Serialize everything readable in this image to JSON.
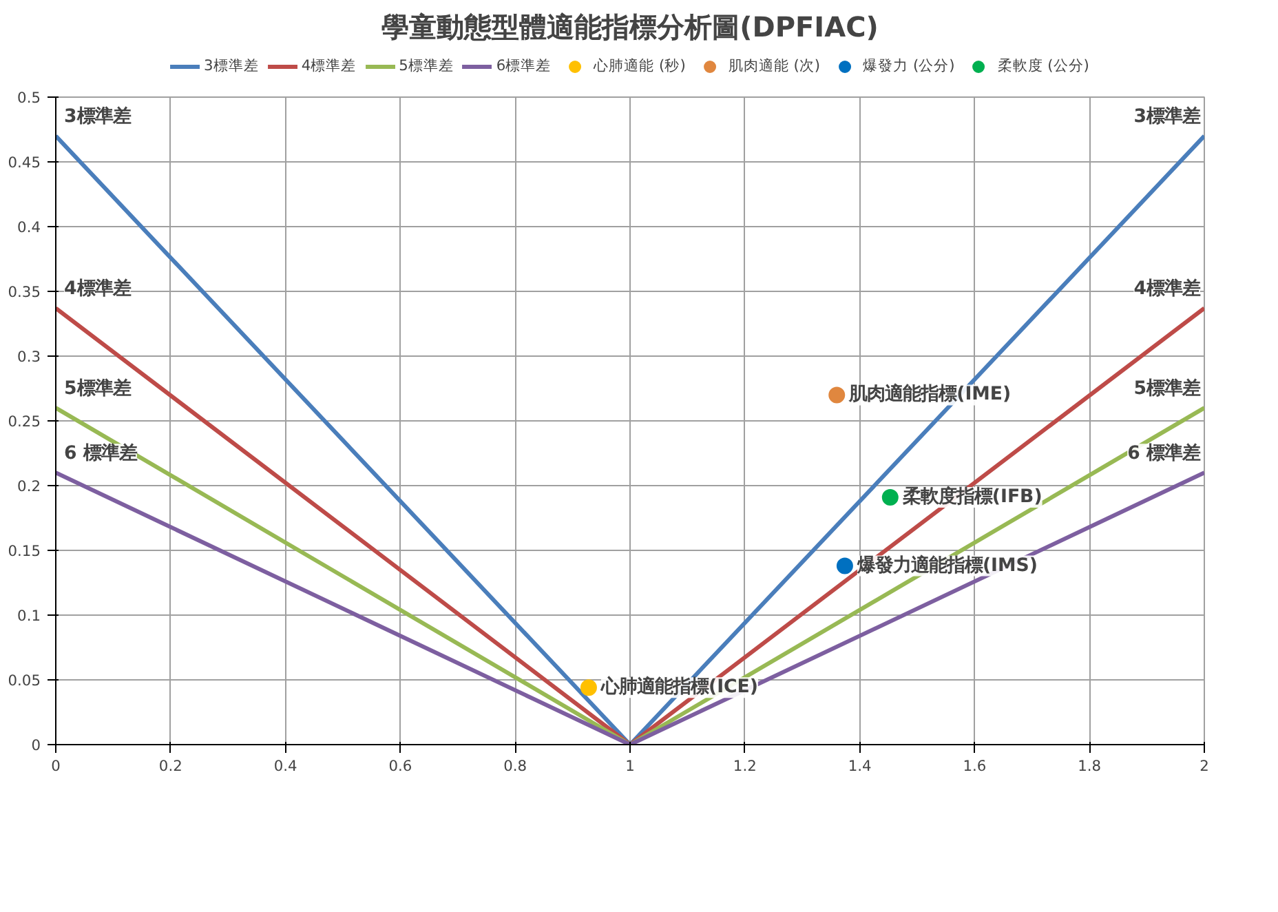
{
  "chart_data": {
    "type": "line",
    "title": "學童動態型體適能指標分析圖(DPFIAC)",
    "x": [
      0,
      1,
      2
    ],
    "series": [
      {
        "name": "3標準差",
        "color": "#4a7ebb",
        "values": [
          0.47,
          0,
          0.47
        ]
      },
      {
        "name": "4標準差",
        "color": "#be4b48",
        "values": [
          0.337,
          0,
          0.337
        ]
      },
      {
        "name": "5標準差",
        "color": "#98b954",
        "values": [
          0.26,
          0,
          0.26
        ]
      },
      {
        "name": "6標準差",
        "color": "#7d5fa0",
        "values": [
          0.21,
          0,
          0.21
        ]
      },
      {
        "name": "心肺適能 (秒)",
        "type": "scatter",
        "color": "#ffc000",
        "x": [
          0.928
        ],
        "values": [
          0.044
        ]
      },
      {
        "name": "肌肉適能 (次)",
        "type": "scatter",
        "color": "#e0873f",
        "x": [
          1.36
        ],
        "values": [
          0.27
        ]
      },
      {
        "name": "爆發力 (公分)",
        "type": "scatter",
        "color": "#0070c0",
        "x": [
          1.374
        ],
        "values": [
          0.138
        ]
      },
      {
        "name": "柔軟度 (公分)",
        "type": "scatter",
        "color": "#00b050",
        "x": [
          1.453
        ],
        "values": [
          0.191
        ]
      }
    ],
    "xlim": [
      0,
      2
    ],
    "xticks": [
      0,
      {
        "value": 0.2,
        "label": "0.2"
      },
      {
        "value": 0.4,
        "label": "0.4"
      },
      {
        "value": 0.6,
        "label": "0.6"
      },
      {
        "value": 0.8,
        "label": "0.8"
      },
      1,
      {
        "value": 1.2,
        "label": "1.2"
      },
      {
        "value": 1.4,
        "label": "1.4"
      },
      {
        "value": 1.6,
        "label": "1.6"
      },
      {
        "value": 1.8,
        "label": "1.8"
      },
      2
    ],
    "ylim": [
      0,
      0.5
    ],
    "yticks": [
      0,
      {
        "value": 0.05,
        "label": "0.05"
      },
      {
        "value": 0.1,
        "label": "0.1"
      },
      {
        "value": 0.15,
        "label": "0.15"
      },
      {
        "value": 0.2,
        "label": "0.2"
      },
      {
        "value": 0.25,
        "label": "0.25"
      },
      {
        "value": 0.3,
        "label": "0.3"
      },
      {
        "value": 0.35,
        "label": "0.35"
      },
      {
        "value": 0.4,
        "label": "0.4"
      },
      {
        "value": 0.45,
        "label": "0.45"
      },
      {
        "value": 0.5,
        "label": "0.5"
      }
    ],
    "grid": true,
    "legend": "top",
    "annotations": [
      {
        "text": "心肺適能指標(ICE)",
        "x": 0.928,
        "y": 0.044
      },
      {
        "text": "肌肉適能指標(IME)",
        "x": 1.36,
        "y": 0.27
      },
      {
        "text": "爆發力適能指標(IMS)",
        "x": 1.374,
        "y": 0.138
      },
      {
        "text": "柔軟度指標(IFB)",
        "x": 1.453,
        "y": 0.191
      },
      {
        "text": "3標準差",
        "x": 0,
        "y": 0.47
      },
      {
        "text": "4標準差",
        "x": 0,
        "y": 0.337
      },
      {
        "text": "5標準差",
        "x": 0,
        "y": 0.26
      },
      {
        "text": "6 標準差",
        "x": 0,
        "y": 0.21
      },
      {
        "text": "3標準差",
        "x": 2,
        "y": 0.47
      },
      {
        "text": "4標準差",
        "x": 2,
        "y": 0.337
      },
      {
        "text": "5標準差",
        "x": 2,
        "y": 0.26
      },
      {
        "text": "6 標準差",
        "x": 2,
        "y": 0.21
      }
    ]
  }
}
